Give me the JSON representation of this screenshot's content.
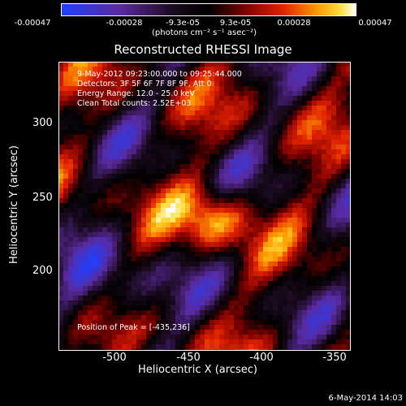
{
  "colorbar": {
    "ticks": [
      "-0.00047",
      "-0.00028",
      "-9.3e-05",
      "9.3e-05",
      "0.00028",
      "0.00047"
    ],
    "unit": "(photons cm⁻² s⁻¹ asec⁻²)"
  },
  "title": "Reconstructed RHESSI Image",
  "info": {
    "time": "9-May-2012 09:23:00.000 to 09:25:44.000",
    "detectors": "Detectors: 3F 5F 6F 7F 8F 9F, Att 0",
    "energy": "Energy Range: 12.0 - 25.0 keV",
    "clean": "Clean    Total counts: 2.52E+03"
  },
  "peak": "Position of Peak = [-435,236]",
  "stamp": "6-May-2014 14:03",
  "chart_data": {
    "type": "heatmap",
    "xlabel": "Heliocentric X (arcsec)",
    "ylabel": "Heliocentric Y (arcsec)",
    "xlim": [
      -537,
      -347
    ],
    "ylim": [
      145,
      333
    ],
    "x_ticks": [
      -500,
      -450,
      -400,
      -350
    ],
    "y_ticks": [
      200,
      250,
      300
    ],
    "peak": [
      -435,
      236
    ],
    "value_range": [
      -0.00047,
      0.00047
    ]
  }
}
